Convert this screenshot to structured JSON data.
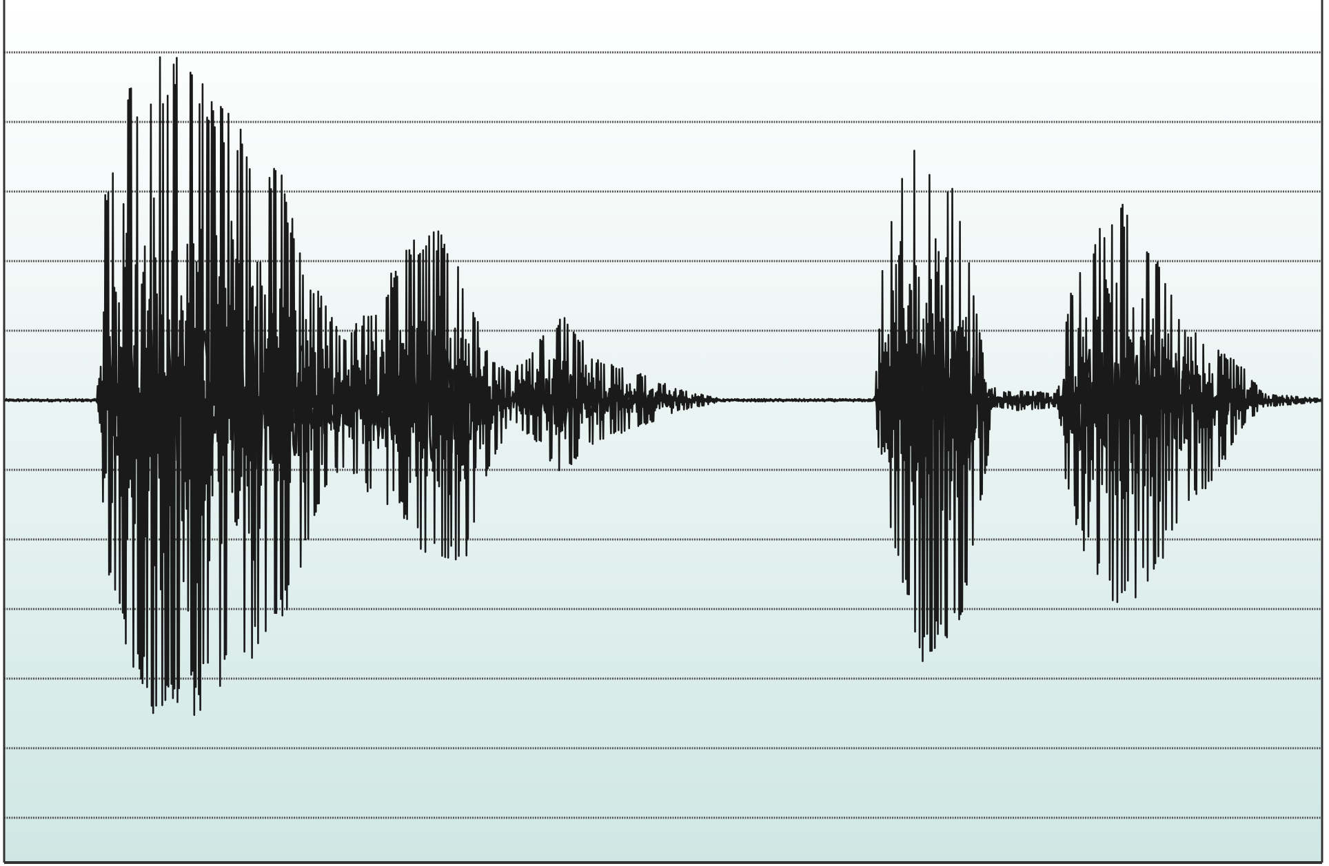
{
  "chart_data": {
    "type": "line",
    "title": "",
    "xlabel": "",
    "ylabel": "",
    "grid": true,
    "legend": "none",
    "ylim": [
      -6,
      6
    ],
    "gridlines_y": [
      5,
      4,
      3,
      2,
      1,
      0,
      -1,
      -2,
      -3,
      -4,
      -5,
      -6
    ],
    "colors": {
      "background_top": "#ffffff",
      "background_bottom": "#cfe7e4",
      "waveform": "#1a1a1a",
      "gridline": "#555555",
      "frame": "#333333"
    },
    "series": [
      {
        "envelope": [
          {
            "x": 0,
            "max": 0.0,
            "min": 0.0
          },
          {
            "x": 110,
            "max": 0.0,
            "min": 0.0
          },
          {
            "x": 120,
            "max": 3.3,
            "min": -2.4
          },
          {
            "x": 150,
            "max": 4.6,
            "min": -3.8
          },
          {
            "x": 175,
            "max": 4.98,
            "min": -4.5
          },
          {
            "x": 210,
            "max": 5.0,
            "min": -4.7
          },
          {
            "x": 240,
            "max": 4.5,
            "min": -4.4
          },
          {
            "x": 270,
            "max": 4.1,
            "min": -4.0
          },
          {
            "x": 300,
            "max": 3.5,
            "min": -3.7
          },
          {
            "x": 330,
            "max": 3.3,
            "min": -3.3
          },
          {
            "x": 350,
            "max": 2.2,
            "min": -2.6
          },
          {
            "x": 375,
            "max": 1.5,
            "min": -1.4
          },
          {
            "x": 400,
            "max": 0.9,
            "min": -1.0
          },
          {
            "x": 440,
            "max": 1.4,
            "min": -1.5
          },
          {
            "x": 465,
            "max": 2.0,
            "min": -1.5
          },
          {
            "x": 500,
            "max": 2.6,
            "min": -2.4
          },
          {
            "x": 525,
            "max": 2.3,
            "min": -2.4
          },
          {
            "x": 548,
            "max": 1.7,
            "min": -2.3
          },
          {
            "x": 575,
            "max": 0.6,
            "min": -1.0
          },
          {
            "x": 600,
            "max": 0.4,
            "min": -0.3
          },
          {
            "x": 630,
            "max": 0.8,
            "min": -0.6
          },
          {
            "x": 660,
            "max": 1.3,
            "min": -1.1
          },
          {
            "x": 700,
            "max": 0.6,
            "min": -0.6
          },
          {
            "x": 750,
            "max": 0.4,
            "min": -0.4
          },
          {
            "x": 800,
            "max": 0.15,
            "min": -0.15
          },
          {
            "x": 850,
            "max": 0.02,
            "min": -0.02
          },
          {
            "x": 1030,
            "max": 0.0,
            "min": 0.0
          },
          {
            "x": 1040,
            "max": 2.0,
            "min": -1.5
          },
          {
            "x": 1060,
            "max": 3.4,
            "min": -2.6
          },
          {
            "x": 1085,
            "max": 3.8,
            "min": -3.8
          },
          {
            "x": 1110,
            "max": 3.4,
            "min": -3.5
          },
          {
            "x": 1135,
            "max": 2.7,
            "min": -3.2
          },
          {
            "x": 1160,
            "max": 0.6,
            "min": -1.2
          },
          {
            "x": 1175,
            "max": 0.1,
            "min": -0.1
          },
          {
            "x": 1200,
            "max": 0.15,
            "min": -0.15
          },
          {
            "x": 1245,
            "max": 0.1,
            "min": -0.1
          },
          {
            "x": 1255,
            "max": 1.2,
            "min": -1.1
          },
          {
            "x": 1275,
            "max": 2.1,
            "min": -2.1
          },
          {
            "x": 1310,
            "max": 2.9,
            "min": -2.9
          },
          {
            "x": 1335,
            "max": 2.9,
            "min": -3.0
          },
          {
            "x": 1360,
            "max": 2.2,
            "min": -2.6
          },
          {
            "x": 1395,
            "max": 1.1,
            "min": -1.6
          },
          {
            "x": 1430,
            "max": 0.8,
            "min": -1.2
          },
          {
            "x": 1465,
            "max": 0.5,
            "min": -0.4
          },
          {
            "x": 1490,
            "max": 0.1,
            "min": -0.1
          },
          {
            "x": 1560,
            "max": 0.02,
            "min": -0.02
          }
        ]
      }
    ]
  }
}
